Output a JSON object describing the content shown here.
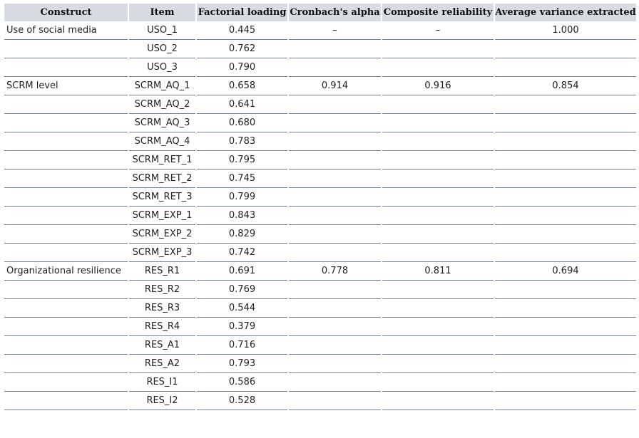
{
  "table": {
    "headers": [
      "Construct",
      "Item",
      "Factorial loading",
      "Cronbach's alpha",
      "Composite reliability",
      "Average variance extracted"
    ],
    "groups": [
      {
        "construct": "Use of social media",
        "alpha": "–",
        "composite": "–",
        "ave": "1.000",
        "items": [
          {
            "item": "USO_1",
            "loading": "0.445"
          },
          {
            "item": "USO_2",
            "loading": "0.762"
          },
          {
            "item": "USO_3",
            "loading": "0.790"
          }
        ]
      },
      {
        "construct": "SCRM level",
        "alpha": "0.914",
        "composite": "0.916",
        "ave": "0.854",
        "items": [
          {
            "item": "SCRM_AQ_1",
            "loading": "0.658"
          },
          {
            "item": "SCRM_AQ_2",
            "loading": "0.641"
          },
          {
            "item": "SCRM_AQ_3",
            "loading": "0.680"
          },
          {
            "item": "SCRM_AQ_4",
            "loading": "0.783"
          },
          {
            "item": "SCRM_RET_1",
            "loading": "0.795"
          },
          {
            "item": "SCRM_RET_2",
            "loading": "0.745"
          },
          {
            "item": "SCRM_RET_3",
            "loading": "0.799"
          },
          {
            "item": "SCRM_EXP_1",
            "loading": "0.843"
          },
          {
            "item": "SCRM_EXP_2",
            "loading": "0.829"
          },
          {
            "item": "SCRM_EXP_3",
            "loading": "0.742"
          }
        ]
      },
      {
        "construct": "Organizational resilience",
        "alpha": "0.778",
        "composite": "0.811",
        "ave": "0.694",
        "items": [
          {
            "item": "RES_R1",
            "loading": "0.691"
          },
          {
            "item": "RES_R2",
            "loading": "0.769"
          },
          {
            "item": "RES_R3",
            "loading": "0.544"
          },
          {
            "item": "RES_R4",
            "loading": "0.379"
          },
          {
            "item": "RES_A1",
            "loading": "0.716"
          },
          {
            "item": "RES_A2",
            "loading": "0.793"
          },
          {
            "item": "RES_I1",
            "loading": "0.586"
          },
          {
            "item": "RES_I2",
            "loading": "0.528"
          }
        ]
      }
    ]
  }
}
